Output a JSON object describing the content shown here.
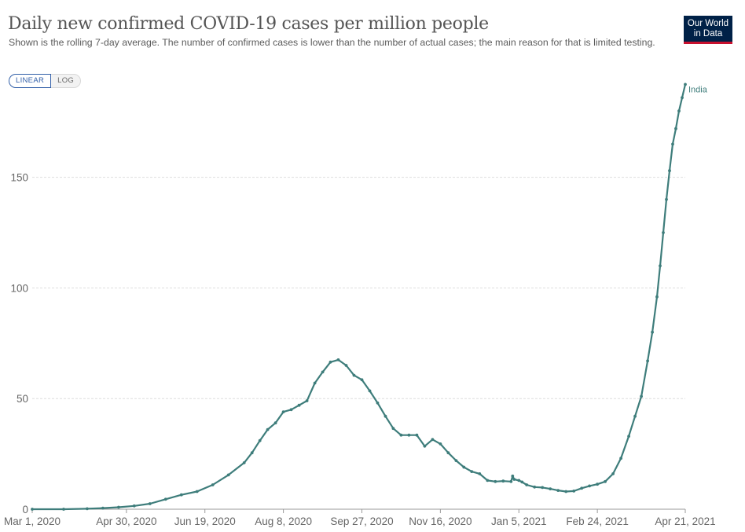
{
  "header": {
    "title": "Daily new confirmed COVID-19 cases per million people",
    "subtitle": "Shown is the rolling 7-day average. The number of confirmed cases is lower than the number of actual cases; the main reason for that is limited testing.",
    "logo_line1": "Our World",
    "logo_line2": "in Data"
  },
  "controls": {
    "linear_label": "LINEAR",
    "log_label": "LOG",
    "selected": "LINEAR"
  },
  "colors": {
    "series": "#3e7d7b",
    "grid": "#dddddd",
    "axis": "#666666"
  },
  "chart_data": {
    "type": "line",
    "title": "Daily new confirmed COVID-19 cases per million people",
    "xlabel": "",
    "ylabel": "",
    "x_unit": "days since Mar 1, 2020",
    "xlim": [
      0,
      416
    ],
    "ylim": [
      0,
      190
    ],
    "y_ticks": [
      0,
      50,
      100,
      150
    ],
    "x_ticks": [
      {
        "day": 0,
        "label": "Mar 1, 2020"
      },
      {
        "day": 60,
        "label": "Apr 30, 2020"
      },
      {
        "day": 110,
        "label": "Jun 19, 2020"
      },
      {
        "day": 160,
        "label": "Aug 8, 2020"
      },
      {
        "day": 210,
        "label": "Sep 27, 2020"
      },
      {
        "day": 260,
        "label": "Nov 16, 2020"
      },
      {
        "day": 310,
        "label": "Jan 5, 2021"
      },
      {
        "day": 360,
        "label": "Feb 24, 2021"
      },
      {
        "day": 416,
        "label": "Apr 21, 2021"
      }
    ],
    "grid": true,
    "series": [
      {
        "name": "India",
        "x": [
          0,
          20,
          35,
          45,
          55,
          65,
          75,
          85,
          95,
          105,
          115,
          125,
          135,
          140,
          145,
          150,
          155,
          160,
          165,
          170,
          175,
          180,
          185,
          190,
          195,
          200,
          205,
          210,
          215,
          220,
          225,
          230,
          235,
          240,
          245,
          250,
          255,
          260,
          265,
          270,
          275,
          280,
          285,
          290,
          295,
          300,
          305,
          306,
          307,
          310,
          312,
          315,
          320,
          325,
          330,
          335,
          340,
          345,
          350,
          355,
          360,
          365,
          370,
          375,
          380,
          384,
          388,
          392,
          395,
          398,
          400,
          402,
          404,
          406,
          408,
          410,
          412,
          414,
          416
        ],
        "values": [
          0,
          0,
          0.2,
          0.5,
          0.9,
          1.5,
          2.5,
          4.5,
          6.5,
          8,
          11,
          15.5,
          21,
          25.5,
          31,
          36,
          39,
          44,
          45,
          47,
          49,
          57,
          62,
          66.5,
          67.5,
          65,
          60.5,
          58.5,
          53.5,
          48,
          42,
          36.5,
          33.5,
          33.5,
          33.5,
          28.5,
          31.5,
          29.5,
          25.5,
          22,
          19,
          17,
          16,
          13,
          12.5,
          12.7,
          12.5,
          15,
          13.5,
          13,
          12.3,
          11,
          10,
          9.8,
          9.2,
          8.5,
          8,
          8.2,
          9.5,
          10.5,
          11.3,
          12.5,
          16,
          23,
          33,
          42,
          51,
          67,
          80,
          96,
          110,
          125,
          140,
          153,
          165,
          172,
          180,
          186,
          192
        ]
      }
    ]
  }
}
